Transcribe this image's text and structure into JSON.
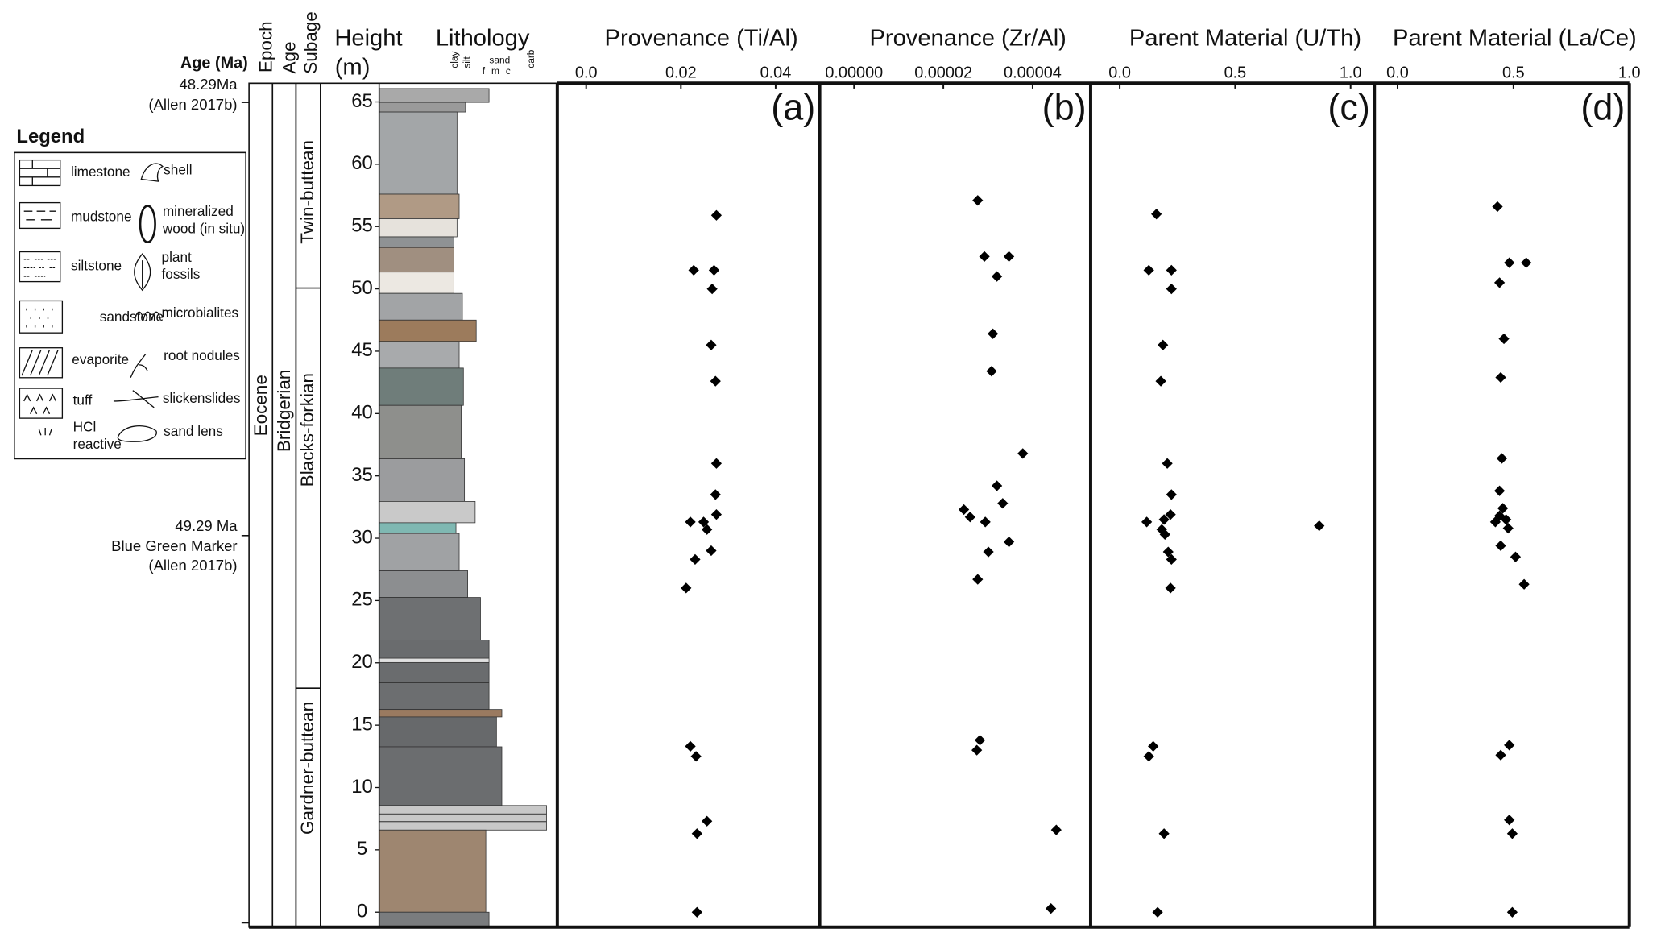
{
  "header": {
    "age_ma": "Age (Ma)",
    "epoch": "Epoch",
    "age": "Age",
    "subage": "Subage",
    "height": "Height",
    "height_unit": "(m)",
    "lithology": "Lithology",
    "grain": {
      "clay": "clay",
      "silt": "silt",
      "sand": "sand",
      "f": "f",
      "m": "m",
      "c": "c",
      "carb": "carb"
    }
  },
  "ages": [
    {
      "age": "48.29Ma",
      "source": "(Allen 2017b)"
    },
    {
      "age": "49.29 Ma",
      "marker": "Blue Green Marker",
      "source": "(Allen 2017b)"
    }
  ],
  "units": {
    "epoch": "Eocene",
    "age": "Bridgerian",
    "subages": [
      "Twin-buttean",
      "Blacks-forkian",
      "Gardner-buttean"
    ]
  },
  "legend": {
    "title": "Legend",
    "items": [
      [
        "limestone"
      ],
      [
        "shell"
      ],
      [
        "mudstone"
      ],
      [
        "mineralized",
        "wood (in situ)"
      ],
      [
        "siltstone"
      ],
      [
        "plant",
        "fossils"
      ],
      [
        "sandstone"
      ],
      [
        "microbialites"
      ],
      [
        "evaporite"
      ],
      [
        "root nodules"
      ],
      [
        "tuff"
      ],
      [
        "slickenslides"
      ],
      [
        "HCl",
        "reactive"
      ],
      [
        "sand lens"
      ]
    ]
  },
  "chart_data": [
    {
      "type": "scatter",
      "title": "Provenance (Ti/Al)",
      "panel": "(a)",
      "color": "#000000",
      "xlim": [
        -0.0061,
        0.0493
      ],
      "xticks": [
        {
          "value": 0,
          "label": "0.0"
        },
        0.02,
        0.04
      ],
      "ylim": [
        -1.2,
        66.5
      ],
      "yticks": [
        0,
        5,
        10,
        15,
        20,
        25,
        30,
        35,
        40,
        45,
        50,
        55,
        60,
        65
      ],
      "x": [
        0.0275,
        0.0227,
        0.027,
        0.0266,
        0.0264,
        0.0273,
        0.0275,
        0.0273,
        0.0275,
        0.022,
        0.0248,
        0.0255,
        0.0264,
        0.023,
        0.0211,
        0.022,
        0.0232,
        0.0255,
        0.0234,
        0.0234
      ],
      "values": [
        55.9,
        51.5,
        51.5,
        50.0,
        45.5,
        42.6,
        36.0,
        33.5,
        31.9,
        31.3,
        31.3,
        30.7,
        29.0,
        28.3,
        26.0,
        13.3,
        12.5,
        7.3,
        6.3,
        0
      ]
    },
    {
      "type": "scatter",
      "title": "Provenance (Zr/Al)",
      "panel": "(b)",
      "color": "#000000",
      "xlim": [
        -7.7e-06,
        5.3e-05
      ],
      "xticks": [
        {
          "value": 0,
          "label": "0.00000"
        },
        {
          "value": 2e-05,
          "label": "0.00002"
        },
        {
          "value": 4e-05,
          "label": "0.00004"
        }
      ],
      "ylim": [
        -1.2,
        66.5
      ],
      "x": [
        2.77e-05,
        2.92e-05,
        3.47e-05,
        3.2e-05,
        3.11e-05,
        3.08e-05,
        3.78e-05,
        3.2e-05,
        3.33e-05,
        2.46e-05,
        2.6e-05,
        2.94e-05,
        3.47e-05,
        3.01e-05,
        2.77e-05,
        2.82e-05,
        2.75e-05,
        4.53e-05,
        4.41e-05
      ],
      "values": [
        57.1,
        52.6,
        52.6,
        51.0,
        46.4,
        43.4,
        36.8,
        34.2,
        32.8,
        32.3,
        31.7,
        31.3,
        29.7,
        28.9,
        26.7,
        13.8,
        13.0,
        6.6,
        0.3
      ]
    },
    {
      "type": "scatter",
      "title": "Parent Material (U/Th)",
      "panel": "(c)",
      "color": "#000000",
      "xlim": [
        -0.126,
        1.103
      ],
      "xticks": [
        {
          "value": 0,
          "label": "0.0"
        },
        0.5,
        {
          "value": 1,
          "label": "1.0"
        }
      ],
      "ylim": [
        -1.2,
        66.5
      ],
      "x": [
        0.159,
        0.126,
        0.224,
        0.224,
        0.187,
        0.178,
        0.206,
        0.224,
        0.22,
        0.192,
        0.117,
        0.182,
        0.196,
        0.864,
        0.21,
        0.224,
        0.22,
        0.145,
        0.126,
        0.192,
        0.164
      ],
      "values": [
        56.0,
        51.5,
        51.5,
        50.0,
        45.5,
        42.6,
        36.0,
        33.5,
        31.9,
        31.5,
        31.3,
        30.7,
        30.3,
        31.0,
        28.9,
        28.3,
        26.0,
        13.3,
        12.5,
        6.3,
        0
      ]
    },
    {
      "type": "scatter",
      "title": "Parent Material (La/Ce)",
      "panel": "(d)",
      "color": "#000000",
      "xlim": [
        -0.1,
        1.0
      ],
      "xticks": [
        {
          "value": 0,
          "label": "0.0"
        },
        0.5,
        {
          "value": 1,
          "label": "1.0"
        }
      ],
      "ylim": [
        -1.2,
        66.5
      ],
      "x": [
        0.431,
        0.482,
        0.555,
        0.44,
        0.459,
        0.445,
        0.45,
        0.44,
        0.454,
        0.44,
        0.422,
        0.468,
        0.477,
        0.445,
        0.509,
        0.546,
        0.482,
        0.445,
        0.482,
        0.495,
        0.495
      ],
      "values": [
        56.6,
        52.1,
        52.1,
        50.5,
        46.0,
        42.9,
        36.4,
        33.8,
        32.4,
        31.8,
        31.3,
        31.5,
        30.8,
        29.4,
        28.5,
        26.3,
        13.4,
        12.6,
        7.4,
        6.3,
        0
      ]
    }
  ]
}
